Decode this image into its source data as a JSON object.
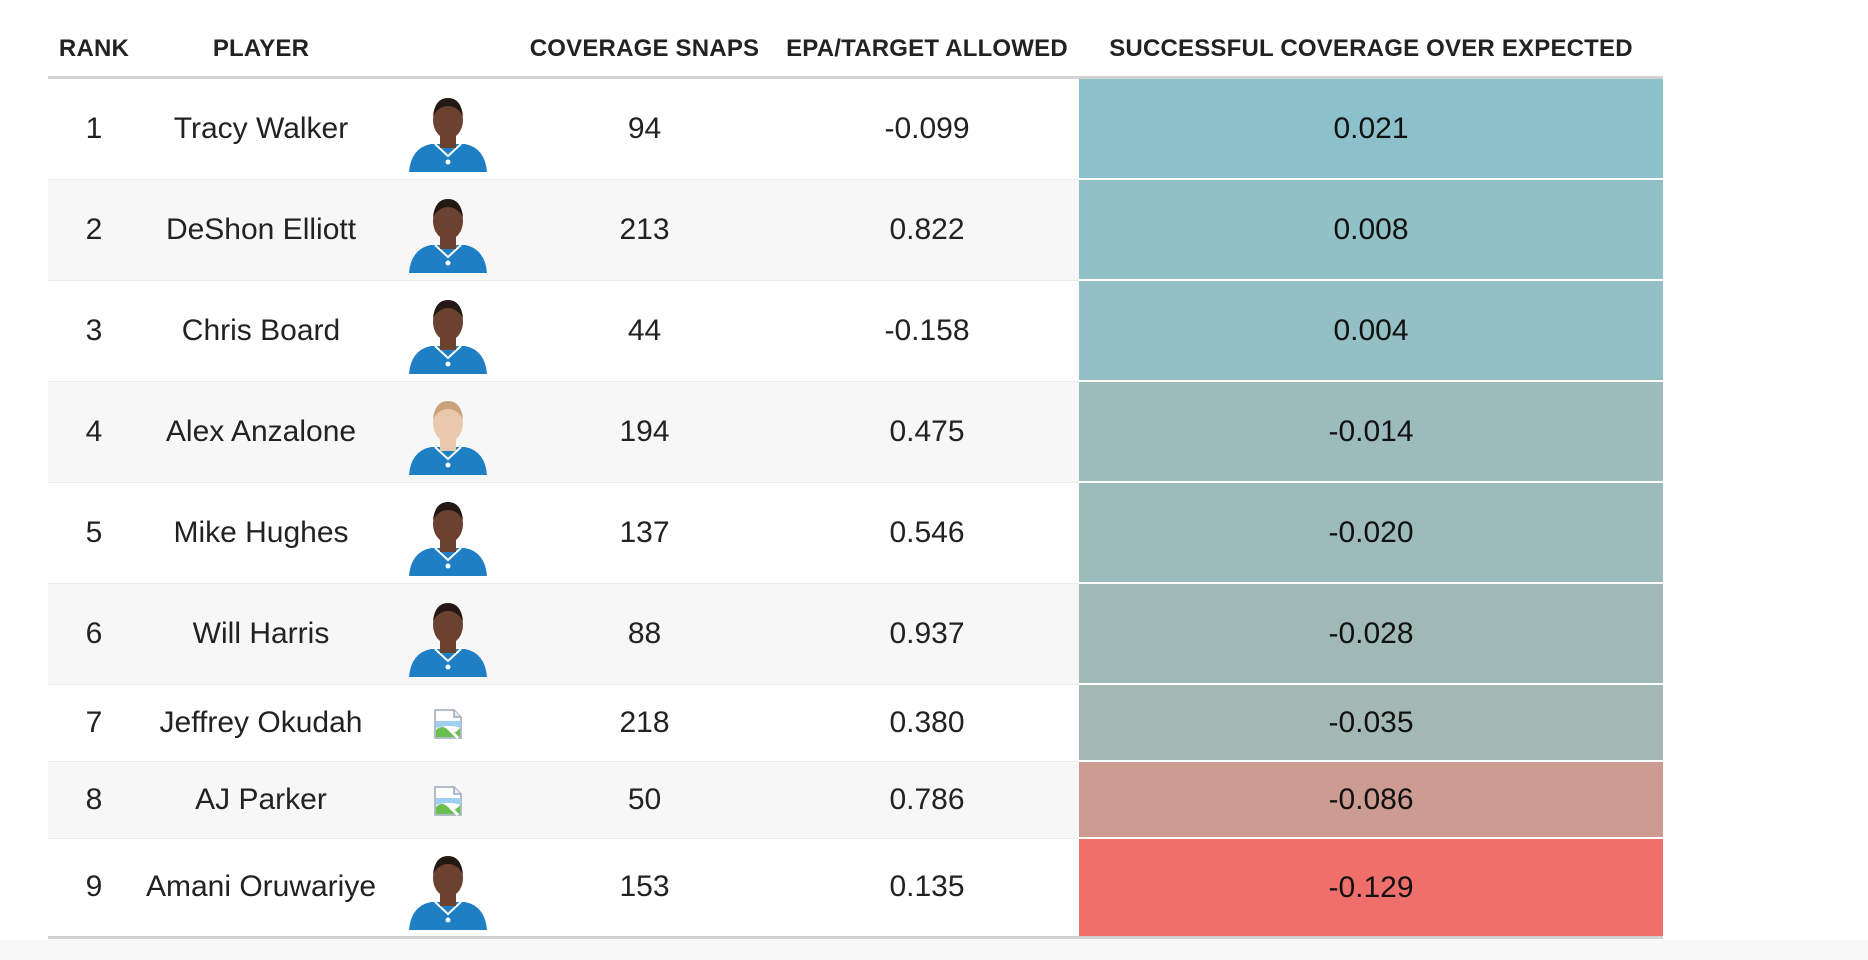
{
  "table": {
    "headers": {
      "rank": "RANK",
      "player": "PLAYER",
      "headshot": "",
      "coverage_snaps": "COVERAGE SNAPS",
      "epa_target_allowed": "EPA/TARGET ALLOWED",
      "successful_coverage_over_expected": "SUCCESSFUL COVERAGE OVER EXPECTED"
    },
    "rows": [
      {
        "rank": "1",
        "player": "Tracy Walker",
        "headshot": "player-headshot",
        "coverage_snaps": "94",
        "epa": "-0.099",
        "sce": "0.021",
        "sce_color": "#8cc1cb"
      },
      {
        "rank": "2",
        "player": "DeShon Elliott",
        "headshot": "player-headshot",
        "coverage_snaps": "213",
        "epa": "0.822",
        "sce": "0.008",
        "sce_color": "#91c0c6"
      },
      {
        "rank": "3",
        "player": "Chris Board",
        "headshot": "player-headshot",
        "coverage_snaps": "44",
        "epa": "-0.158",
        "sce": "0.004",
        "sce_color": "#93bfc5"
      },
      {
        "rank": "4",
        "player": "Alex Anzalone",
        "headshot": "player-headshot",
        "coverage_snaps": "194",
        "epa": "0.475",
        "sce": "-0.014",
        "sce_color": "#9cbbbd"
      },
      {
        "rank": "5",
        "player": "Mike Hughes",
        "headshot": "player-headshot",
        "coverage_snaps": "137",
        "epa": "0.546",
        "sce": "-0.020",
        "sce_color": "#9ebbbb"
      },
      {
        "rank": "6",
        "player": "Will Harris",
        "headshot": "player-headshot",
        "coverage_snaps": "88",
        "epa": "0.937",
        "sce": "-0.028",
        "sce_color": "#a1b9b6"
      },
      {
        "rank": "7",
        "player": "Jeffrey Okudah",
        "headshot": "broken-image",
        "coverage_snaps": "218",
        "epa": "0.380",
        "sce": "-0.035",
        "sce_color": "#a3b8b3"
      },
      {
        "rank": "8",
        "player": "AJ Parker",
        "headshot": "broken-image",
        "coverage_snaps": "50",
        "epa": "0.786",
        "sce": "-0.086",
        "sce_color": "#cc9b91"
      },
      {
        "rank": "9",
        "player": "Amani Oruwariye",
        "headshot": "player-headshot",
        "coverage_snaps": "153",
        "epa": "0.135",
        "sce": "-0.129",
        "sce_color": "#ef6f6b"
      }
    ]
  },
  "colors": {
    "helmet_blue": "#1f7fc4",
    "header_rule": "#d3d3d3",
    "stripe": "#f7f7f7"
  }
}
